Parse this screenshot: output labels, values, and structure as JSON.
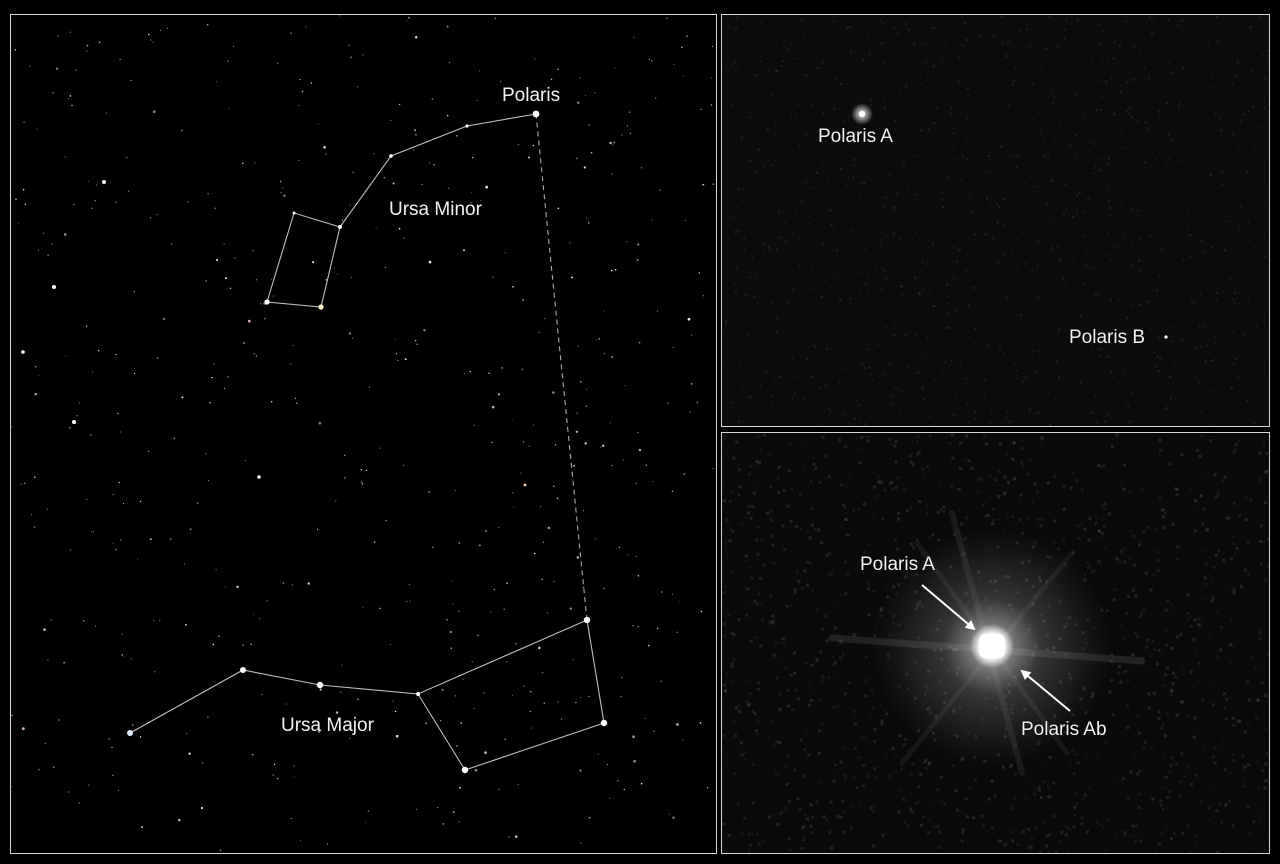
{
  "main_view": {
    "labels": {
      "polaris": "Polaris",
      "ursa_minor": "Ursa Minor",
      "ursa_major": "Ursa Major"
    }
  },
  "zoom_view": {
    "labels": {
      "polaris_a": "Polaris A",
      "polaris_b": "Polaris B"
    }
  },
  "close_view": {
    "labels": {
      "polaris_a": "Polaris A",
      "polaris_ab": "Polaris Ab"
    }
  },
  "colors": {
    "background": "#000000",
    "panel_border": "#d8d8d8",
    "constellation_line": "#bfbfbf",
    "label_text": "#f2f2f2"
  }
}
